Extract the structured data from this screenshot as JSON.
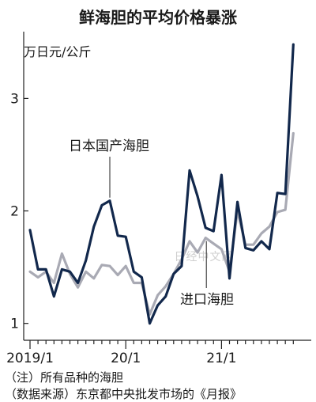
{
  "chart_data": {
    "type": "line",
    "title": "鲜海胆的平均价格暴涨",
    "ylabel": "万日元/公斤",
    "xlabel": "",
    "ylim": [
      0.85,
      3.65
    ],
    "yticks": [
      1,
      2,
      3
    ],
    "x_tick_labels": [
      {
        "index": 0,
        "label": "2019/1"
      },
      {
        "index": 12,
        "label": "20/1"
      },
      {
        "index": 24,
        "label": "21/1"
      }
    ],
    "x_count": 34,
    "grid": false,
    "legend": "inline annotations",
    "series": [
      {
        "name": "日本国产海胆",
        "color": "#12284c",
        "values": [
          1.83,
          1.48,
          1.48,
          1.24,
          1.48,
          1.46,
          1.36,
          1.56,
          1.86,
          2.05,
          2.09,
          1.78,
          1.77,
          1.46,
          1.41,
          1.0,
          1.16,
          1.24,
          1.44,
          1.51,
          2.36,
          2.13,
          1.85,
          1.82,
          2.32,
          1.4,
          2.08,
          1.67,
          1.65,
          1.73,
          1.66,
          2.16,
          2.15,
          3.48
        ]
      },
      {
        "name": "进口海胆",
        "color": "#a9aab4",
        "values": [
          1.46,
          1.41,
          1.46,
          1.36,
          1.62,
          1.44,
          1.32,
          1.46,
          1.4,
          1.52,
          1.51,
          1.43,
          1.51,
          1.36,
          1.36,
          1.08,
          1.25,
          1.33,
          1.44,
          1.57,
          1.73,
          1.63,
          1.76,
          1.71,
          1.66,
          1.46,
          2.0,
          1.7,
          1.7,
          1.8,
          1.86,
          1.99,
          2.01,
          2.69
        ]
      }
    ],
    "annotations": [
      {
        "text": "日本国产海胆",
        "series": 0
      },
      {
        "text": "进口海胆",
        "series": 1
      }
    ]
  },
  "footnotes": {
    "note": "（注）所有品种的海胆",
    "source": "（数据来源）东京都中央批发市场的《月报》"
  },
  "watermark": "日经中文网"
}
